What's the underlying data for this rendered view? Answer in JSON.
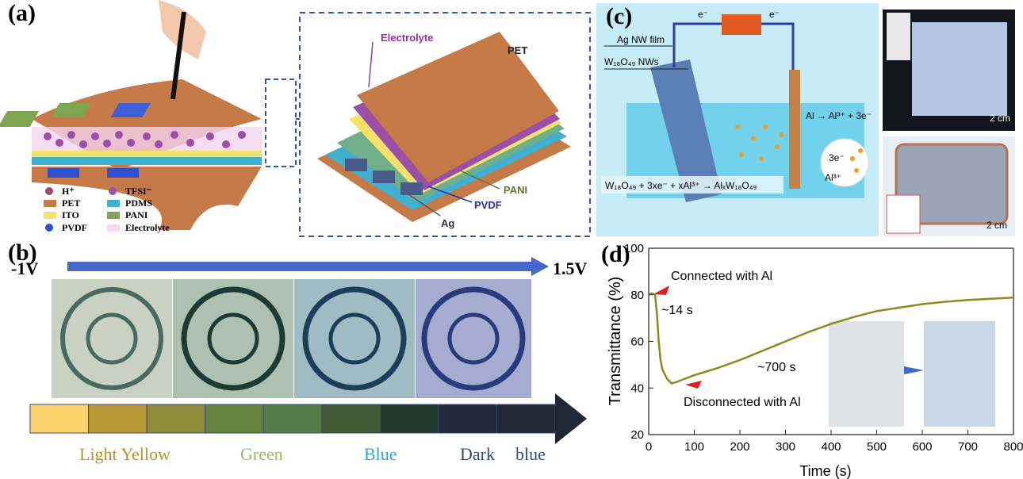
{
  "panels": [
    {
      "label": "(a)",
      "legend": [
        "H⁺",
        "PET",
        "ITO",
        "PVDF",
        "TFSI⁻",
        "PDMS",
        "PANI",
        "Electrolyte"
      ],
      "callouts": [
        "Electrolyte",
        "PET",
        "PANI",
        "PVDF",
        "Ag"
      ]
    },
    {
      "label": "(b)",
      "start": "-1V",
      "end": "1.5V",
      "swatches": [
        "#fcd36a",
        "#b79a35",
        "#8f8d3c",
        "#65823f",
        "#577a49",
        "#3f5a35",
        "#223a2e",
        "#1e2a3a",
        "#202836"
      ],
      "color_names": [
        "Light Yellow",
        "Green",
        "Blue",
        "Dark",
        "blue"
      ]
    },
    {
      "label": "(c)",
      "texts": [
        "Ag NW film",
        "W₁₈O₄₉ NWs",
        "e⁻",
        "e⁻",
        "Al → Al³⁺ + 3e⁻",
        "W₁₈O₄₉ + 3xe⁻ + xAl³⁺ → AlₓW₁₈O₄₉",
        "3e⁻",
        "Al³⁺",
        "2 cm",
        "2 cm"
      ]
    }
  ],
  "chart_data": {
    "type": "line",
    "label": "(d)",
    "x_label": "Time (s)",
    "y_label": "Transmittance (%)",
    "x": [
      0,
      10,
      14,
      18,
      22,
      26,
      30,
      40,
      50,
      60,
      80,
      100,
      150,
      200,
      250,
      300,
      350,
      400,
      450,
      500,
      550,
      600,
      650,
      700,
      750,
      800
    ],
    "series": [
      {
        "color": "#8c8a1c",
        "values": [
          80.5,
          80.5,
          80,
          72,
          60,
          52,
          48,
          44,
          42,
          42.5,
          44,
          45.5,
          48.5,
          52,
          56,
          60,
          64,
          67.5,
          70.5,
          73,
          74.5,
          76,
          77,
          77.8,
          78.3,
          78.8
        ]
      }
    ],
    "xlim": [
      0,
      800
    ],
    "xticks": [
      0,
      100,
      200,
      300,
      400,
      500,
      600,
      700,
      800
    ],
    "ylim": [
      20,
      100
    ],
    "yticks": [
      20,
      40,
      60,
      80,
      100
    ],
    "annotations": [
      "Connected with Al",
      "~14 s",
      "~700 s",
      "Disconnected with Al"
    ]
  }
}
